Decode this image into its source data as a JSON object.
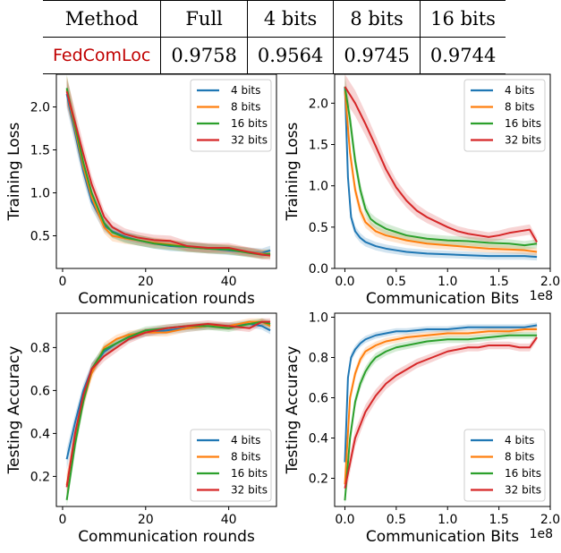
{
  "table": {
    "headers": [
      "Method",
      "Full",
      "4 bits",
      "8 bits",
      "16 bits"
    ],
    "row": {
      "method": "FedComLoc",
      "full": "0.9758",
      "b4": "0.9564",
      "b8": "0.9745",
      "b16": "0.9744"
    }
  },
  "chart_data": [
    {
      "type": "line",
      "xlabel": "Communication rounds",
      "ylabel": "Training Loss",
      "xlim": [
        -1.5,
        51.5
      ],
      "ylim": [
        0.12,
        2.38
      ],
      "xticks": [
        0,
        20,
        40
      ],
      "yticks": [
        0.5,
        1.0,
        1.5,
        2.0
      ],
      "legend": "top-right",
      "series": [
        {
          "name": "4 bits",
          "color": "#1f77b4",
          "x": [
            1,
            3,
            5,
            7,
            10,
            12,
            15,
            18,
            22,
            26,
            30,
            35,
            40,
            45,
            48,
            50
          ],
          "y": [
            2.15,
            1.7,
            1.25,
            0.9,
            0.62,
            0.55,
            0.49,
            0.45,
            0.41,
            0.38,
            0.37,
            0.35,
            0.33,
            0.31,
            0.3,
            0.33
          ]
        },
        {
          "name": "8 bits",
          "color": "#ff7f0e",
          "x": [
            1,
            3,
            5,
            7,
            10,
            12,
            15,
            18,
            22,
            26,
            30,
            35,
            40,
            45,
            48,
            50
          ],
          "y": [
            2.2,
            1.75,
            1.3,
            0.95,
            0.6,
            0.5,
            0.47,
            0.45,
            0.42,
            0.4,
            0.37,
            0.35,
            0.34,
            0.31,
            0.29,
            0.29
          ]
        },
        {
          "name": "16 bits",
          "color": "#2ca02c",
          "x": [
            1,
            3,
            5,
            7,
            10,
            12,
            15,
            18,
            22,
            26,
            30,
            35,
            40,
            45,
            48,
            50
          ],
          "y": [
            2.22,
            1.78,
            1.35,
            1.0,
            0.65,
            0.54,
            0.48,
            0.45,
            0.41,
            0.39,
            0.37,
            0.35,
            0.34,
            0.3,
            0.28,
            0.29
          ]
        },
        {
          "name": "32 bits",
          "color": "#d62728",
          "x": [
            1,
            3,
            5,
            7,
            10,
            12,
            15,
            18,
            22,
            26,
            30,
            35,
            40,
            45,
            48,
            50
          ],
          "y": [
            2.18,
            1.82,
            1.45,
            1.1,
            0.72,
            0.6,
            0.52,
            0.48,
            0.45,
            0.44,
            0.38,
            0.36,
            0.36,
            0.31,
            0.28,
            0.27
          ]
        }
      ]
    },
    {
      "type": "line",
      "xlabel": "Communication Bits",
      "ylabel": "Training Loss",
      "offset_text": "1e8",
      "xlim": [
        -0.1,
        2.0
      ],
      "ylim": [
        0.0,
        2.35
      ],
      "xticks": [
        0.0,
        0.5,
        1.0,
        1.5,
        2.0
      ],
      "yticks": [
        0.0,
        0.5,
        1.0,
        1.5,
        2.0
      ],
      "legend": "top-right",
      "series": [
        {
          "name": "4 bits",
          "color": "#1f77b4",
          "x": [
            0.0,
            0.03,
            0.06,
            0.1,
            0.15,
            0.2,
            0.3,
            0.4,
            0.5,
            0.6,
            0.8,
            1.0,
            1.2,
            1.4,
            1.6,
            1.75,
            1.87
          ],
          "y": [
            2.2,
            1.1,
            0.62,
            0.45,
            0.37,
            0.32,
            0.27,
            0.24,
            0.22,
            0.2,
            0.18,
            0.17,
            0.16,
            0.15,
            0.15,
            0.15,
            0.14
          ]
        },
        {
          "name": "8 bits",
          "color": "#ff7f0e",
          "x": [
            0.0,
            0.05,
            0.1,
            0.15,
            0.2,
            0.3,
            0.4,
            0.5,
            0.6,
            0.8,
            1.0,
            1.2,
            1.4,
            1.6,
            1.75,
            1.87
          ],
          "y": [
            2.15,
            1.4,
            0.95,
            0.7,
            0.56,
            0.45,
            0.4,
            0.37,
            0.34,
            0.3,
            0.28,
            0.26,
            0.24,
            0.23,
            0.22,
            0.2
          ]
        },
        {
          "name": "16 bits",
          "color": "#2ca02c",
          "x": [
            0.0,
            0.05,
            0.1,
            0.15,
            0.2,
            0.25,
            0.3,
            0.4,
            0.5,
            0.6,
            0.8,
            1.0,
            1.2,
            1.4,
            1.6,
            1.75,
            1.87
          ],
          "y": [
            2.2,
            1.8,
            1.3,
            0.95,
            0.72,
            0.6,
            0.55,
            0.48,
            0.44,
            0.4,
            0.36,
            0.34,
            0.33,
            0.31,
            0.3,
            0.28,
            0.3
          ]
        },
        {
          "name": "32 bits",
          "color": "#d62728",
          "x": [
            0.0,
            0.1,
            0.2,
            0.3,
            0.4,
            0.5,
            0.6,
            0.7,
            0.8,
            0.9,
            1.0,
            1.1,
            1.2,
            1.3,
            1.4,
            1.5,
            1.6,
            1.7,
            1.8,
            1.87
          ],
          "y": [
            2.2,
            2.0,
            1.75,
            1.48,
            1.2,
            0.98,
            0.82,
            0.7,
            0.62,
            0.56,
            0.5,
            0.45,
            0.42,
            0.4,
            0.38,
            0.4,
            0.43,
            0.45,
            0.47,
            0.32
          ]
        }
      ]
    },
    {
      "type": "line",
      "xlabel": "Communication rounds",
      "ylabel": "Testing Accuracy",
      "xlim": [
        -1.5,
        51.5
      ],
      "ylim": [
        0.06,
        0.96
      ],
      "xticks": [
        0,
        20,
        40
      ],
      "yticks": [
        0.2,
        0.4,
        0.6,
        0.8
      ],
      "legend": "bottom-right",
      "series": [
        {
          "name": "4 bits",
          "color": "#1f77b4",
          "x": [
            1,
            3,
            5,
            7,
            10,
            13,
            16,
            20,
            25,
            30,
            35,
            40,
            45,
            48,
            50
          ],
          "y": [
            0.28,
            0.45,
            0.6,
            0.7,
            0.78,
            0.82,
            0.85,
            0.87,
            0.88,
            0.89,
            0.9,
            0.9,
            0.91,
            0.9,
            0.88
          ]
        },
        {
          "name": "8 bits",
          "color": "#ff7f0e",
          "x": [
            1,
            3,
            5,
            7,
            10,
            13,
            16,
            20,
            25,
            30,
            35,
            40,
            45,
            48,
            50
          ],
          "y": [
            0.16,
            0.38,
            0.55,
            0.68,
            0.8,
            0.84,
            0.86,
            0.87,
            0.87,
            0.89,
            0.9,
            0.9,
            0.92,
            0.92,
            0.9
          ]
        },
        {
          "name": "16 bits",
          "color": "#2ca02c",
          "x": [
            1,
            3,
            5,
            7,
            10,
            13,
            16,
            20,
            25,
            30,
            35,
            40,
            45,
            48,
            50
          ],
          "y": [
            0.09,
            0.35,
            0.55,
            0.7,
            0.79,
            0.82,
            0.85,
            0.88,
            0.89,
            0.9,
            0.9,
            0.89,
            0.91,
            0.92,
            0.91
          ]
        },
        {
          "name": "32 bits",
          "color": "#d62728",
          "x": [
            1,
            3,
            5,
            7,
            10,
            13,
            16,
            20,
            25,
            30,
            35,
            40,
            45,
            48,
            50
          ],
          "y": [
            0.15,
            0.4,
            0.58,
            0.7,
            0.76,
            0.8,
            0.84,
            0.87,
            0.89,
            0.9,
            0.91,
            0.9,
            0.89,
            0.92,
            0.92
          ]
        }
      ]
    },
    {
      "type": "line",
      "xlabel": "Communication Bits",
      "ylabel": "Testing Accuracy",
      "offset_text": "1e8",
      "xlim": [
        -0.1,
        2.0
      ],
      "ylim": [
        0.06,
        1.02
      ],
      "xticks": [
        0.0,
        0.5,
        1.0,
        1.5,
        2.0
      ],
      "yticks": [
        0.2,
        0.4,
        0.6,
        0.8,
        1.0
      ],
      "legend": "bottom-right",
      "series": [
        {
          "name": "4 bits",
          "color": "#1f77b4",
          "x": [
            0.0,
            0.03,
            0.06,
            0.1,
            0.15,
            0.2,
            0.3,
            0.4,
            0.5,
            0.6,
            0.8,
            1.0,
            1.2,
            1.4,
            1.6,
            1.75,
            1.87
          ],
          "y": [
            0.28,
            0.7,
            0.8,
            0.84,
            0.87,
            0.89,
            0.91,
            0.92,
            0.93,
            0.93,
            0.94,
            0.94,
            0.95,
            0.95,
            0.95,
            0.95,
            0.96
          ]
        },
        {
          "name": "8 bits",
          "color": "#ff7f0e",
          "x": [
            0.0,
            0.05,
            0.1,
            0.15,
            0.2,
            0.3,
            0.4,
            0.5,
            0.6,
            0.8,
            1.0,
            1.2,
            1.4,
            1.6,
            1.75,
            1.87
          ],
          "y": [
            0.17,
            0.6,
            0.72,
            0.79,
            0.83,
            0.86,
            0.88,
            0.89,
            0.9,
            0.91,
            0.92,
            0.92,
            0.93,
            0.93,
            0.94,
            0.94
          ]
        },
        {
          "name": "16 bits",
          "color": "#2ca02c",
          "x": [
            0.0,
            0.05,
            0.1,
            0.15,
            0.2,
            0.25,
            0.3,
            0.4,
            0.5,
            0.6,
            0.8,
            1.0,
            1.2,
            1.4,
            1.6,
            1.75,
            1.87
          ],
          "y": [
            0.09,
            0.4,
            0.58,
            0.67,
            0.73,
            0.77,
            0.8,
            0.83,
            0.85,
            0.86,
            0.88,
            0.89,
            0.89,
            0.9,
            0.91,
            0.91,
            0.91
          ]
        },
        {
          "name": "32 bits",
          "color": "#d62728",
          "x": [
            0.0,
            0.1,
            0.2,
            0.3,
            0.4,
            0.5,
            0.6,
            0.7,
            0.8,
            0.9,
            1.0,
            1.1,
            1.2,
            1.3,
            1.4,
            1.5,
            1.6,
            1.7,
            1.8,
            1.87
          ],
          "y": [
            0.15,
            0.4,
            0.53,
            0.61,
            0.67,
            0.71,
            0.74,
            0.77,
            0.79,
            0.81,
            0.83,
            0.84,
            0.85,
            0.85,
            0.86,
            0.86,
            0.86,
            0.85,
            0.85,
            0.9
          ]
        }
      ]
    }
  ]
}
